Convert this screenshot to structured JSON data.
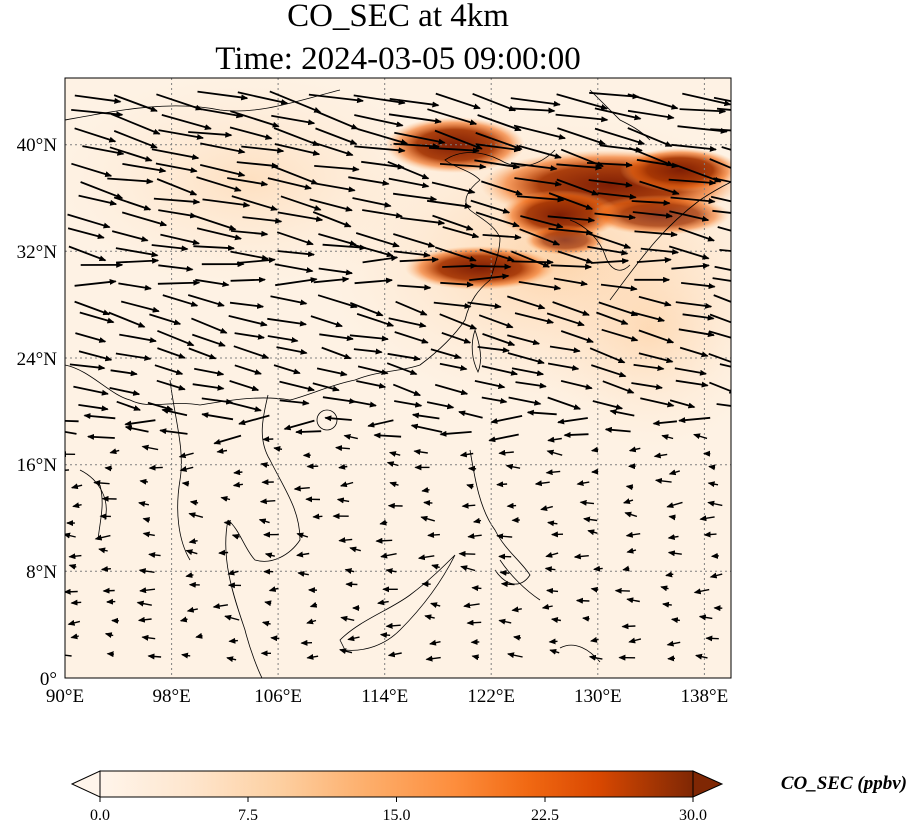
{
  "title": "CO_SEC at 4km",
  "subtitle": "Time: 2024-03-05 09:00:00",
  "map": {
    "lon_range": [
      90,
      140
    ],
    "lat_range": [
      0,
      45
    ],
    "lon_ticks": [
      "90°E",
      "98°E",
      "106°E",
      "114°E",
      "122°E",
      "130°E",
      "138°E"
    ],
    "lat_ticks": [
      "0°",
      "8°N",
      "16°N",
      "24°N",
      "32°N",
      "40°N"
    ],
    "gridlines": "dotted",
    "vector_field": "wind arrows"
  },
  "colorbar": {
    "label": "CO_SEC (ppbv)",
    "ticks": [
      "0.0",
      "7.5",
      "15.0",
      "22.5",
      "30.0"
    ],
    "range": [
      0,
      30
    ],
    "extend": "both",
    "colormap": [
      "#fff5eb",
      "#fee6ce",
      "#fdd0a2",
      "#fdae6b",
      "#fd8d3c",
      "#f16913",
      "#d94801",
      "#a63603",
      "#7f2704"
    ]
  }
}
